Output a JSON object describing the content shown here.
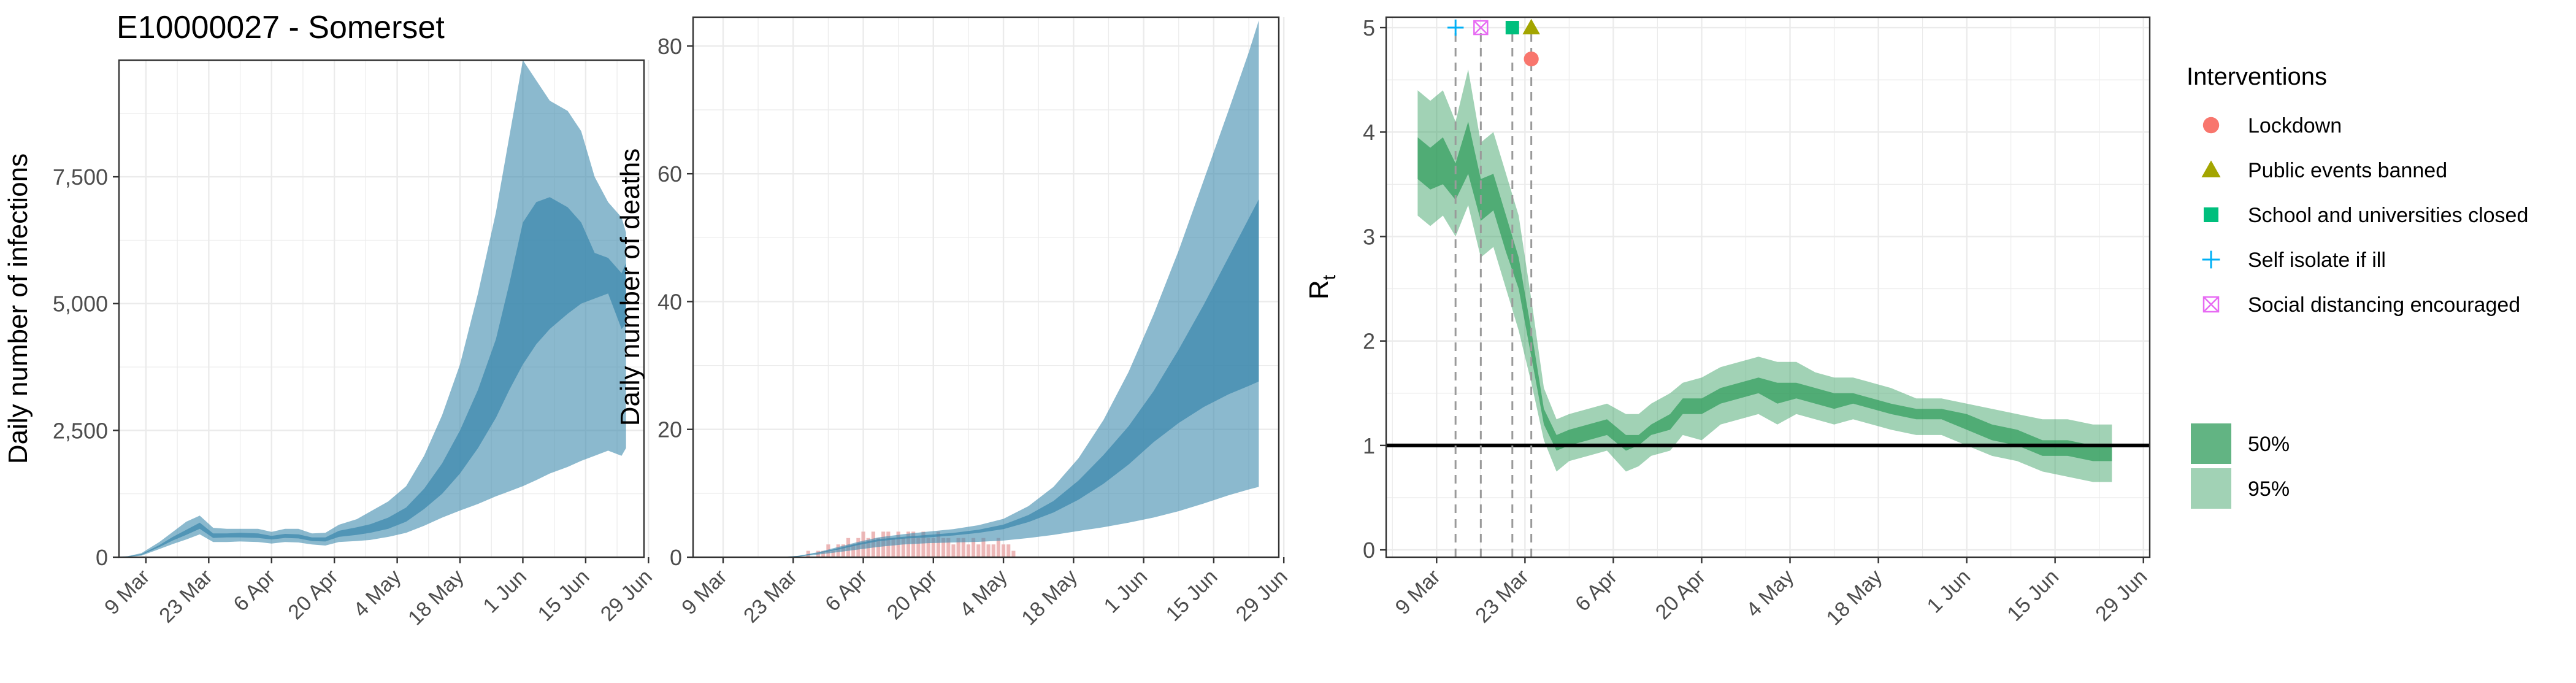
{
  "title": "E10000027 - Somerset",
  "colors": {
    "infection_fill": "#3d8aad",
    "rt_fill": "#2e9b5a",
    "death_bars": "#e9a6a6",
    "grid": "#ebebeb",
    "axis_text": "#4d4d4d",
    "lockdown": "#f8766d",
    "public_events": "#a3a500",
    "schools": "#00bf7d",
    "self_isolate": "#00b0f6",
    "social_distancing": "#e76bf3"
  },
  "x_ticks": [
    "9 Mar",
    "23 Mar",
    "6 Apr",
    "20 Apr",
    "4 May",
    "18 May",
    "1 Jun",
    "15 Jun",
    "29 Jun"
  ],
  "chart_data": [
    {
      "type": "area",
      "title": "E10000027 - Somerset",
      "xlabel": "",
      "ylabel": "Daily number of infections",
      "x_ticks": [
        "9 Mar",
        "23 Mar",
        "6 Apr",
        "20 Apr",
        "4 May",
        "18 May",
        "1 Jun",
        "15 Jun",
        "29 Jun"
      ],
      "y_ticks": [
        "0",
        "2,500",
        "5,000",
        "7,500"
      ],
      "ylim": [
        0,
        9800
      ],
      "grid": true,
      "x": [
        "2020-03-01",
        "2020-03-05",
        "2020-03-08",
        "2020-03-12",
        "2020-03-15",
        "2020-03-18",
        "2020-03-21",
        "2020-03-24",
        "2020-03-27",
        "2020-03-30",
        "2020-04-03",
        "2020-04-06",
        "2020-04-09",
        "2020-04-12",
        "2020-04-15",
        "2020-04-18",
        "2020-04-21",
        "2020-04-25",
        "2020-04-28",
        "2020-05-02",
        "2020-05-06",
        "2020-05-10",
        "2020-05-14",
        "2020-05-18",
        "2020-05-22",
        "2020-05-26",
        "2020-05-29",
        "2020-06-01",
        "2020-06-04",
        "2020-06-07",
        "2020-06-11",
        "2020-06-14",
        "2020-06-17",
        "2020-06-20",
        "2020-06-23",
        "2020-06-24"
      ],
      "series": [
        {
          "name": "95%",
          "low": [
            0,
            5,
            30,
            160,
            260,
            350,
            450,
            300,
            300,
            310,
            300,
            270,
            300,
            290,
            250,
            230,
            300,
            320,
            340,
            400,
            480,
            620,
            780,
            920,
            1050,
            1200,
            1300,
            1400,
            1520,
            1650,
            1780,
            1900,
            2000,
            2100,
            2000,
            2150
          ],
          "high": [
            0,
            20,
            80,
            300,
            500,
            700,
            820,
            580,
            560,
            560,
            560,
            500,
            560,
            560,
            470,
            480,
            640,
            750,
            900,
            1100,
            1400,
            2000,
            2800,
            3800,
            5200,
            6800,
            8300,
            9800,
            9400,
            9000,
            8800,
            8400,
            7500,
            7000,
            6700,
            6400
          ]
        },
        {
          "name": "50%",
          "low": [
            0,
            8,
            45,
            200,
            330,
            440,
            560,
            380,
            390,
            390,
            380,
            350,
            380,
            370,
            320,
            310,
            400,
            440,
            480,
            560,
            700,
            950,
            1250,
            1650,
            2150,
            2750,
            3300,
            3800,
            4200,
            4500,
            4800,
            5000,
            5100,
            5200,
            4500,
            4600
          ]
        },
        {
          "name": "50%-high",
          "high": [
            0,
            14,
            60,
            240,
            400,
            540,
            680,
            470,
            470,
            480,
            470,
            420,
            460,
            450,
            390,
            390,
            520,
            590,
            650,
            780,
            980,
            1350,
            1850,
            2500,
            3300,
            4300,
            5400,
            6600,
            7000,
            7100,
            6900,
            6600,
            6000,
            5900,
            5600,
            5800
          ]
        }
      ]
    },
    {
      "type": "area",
      "xlabel": "",
      "ylabel": "Daily number of deaths",
      "x_ticks": [
        "9 Mar",
        "23 Mar",
        "6 Apr",
        "20 Apr",
        "4 May",
        "18 May",
        "1 Jun",
        "15 Jun",
        "29 Jun"
      ],
      "y_ticks": [
        "0",
        "20",
        "40",
        "60",
        "80"
      ],
      "ylim": [
        0,
        84
      ],
      "grid": true,
      "x": [
        "2020-03-20",
        "2020-03-24",
        "2020-03-28",
        "2020-04-01",
        "2020-04-05",
        "2020-04-09",
        "2020-04-14",
        "2020-04-19",
        "2020-04-24",
        "2020-04-29",
        "2020-05-04",
        "2020-05-09",
        "2020-05-14",
        "2020-05-19",
        "2020-05-24",
        "2020-05-29",
        "2020-06-03",
        "2020-06-08",
        "2020-06-13",
        "2020-06-18",
        "2020-06-22",
        "2020-06-24"
      ],
      "series": [
        {
          "name": "95%",
          "low": [
            0,
            0.1,
            0.4,
            0.8,
            1.2,
            1.6,
            2.0,
            2.2,
            2.3,
            2.4,
            2.6,
            3.0,
            3.5,
            4.1,
            4.7,
            5.4,
            6.2,
            7.2,
            8.4,
            9.7,
            10.6,
            11.0
          ],
          "high": [
            0,
            0.2,
            0.8,
            1.6,
            2.4,
            3.1,
            3.6,
            4.0,
            4.4,
            5.0,
            6.0,
            8.0,
            11.0,
            15.5,
            21.5,
            29.0,
            38.0,
            48.0,
            59.0,
            70.0,
            79.0,
            84.0
          ]
        },
        {
          "name": "50%",
          "low": [
            0,
            0.1,
            0.6,
            1.2,
            1.9,
            2.5,
            2.9,
            3.1,
            3.4,
            3.8,
            4.4,
            5.5,
            7.0,
            9.0,
            11.5,
            14.5,
            18.0,
            21.0,
            23.5,
            25.5,
            26.8,
            27.5
          ]
        },
        {
          "name": "50%-high",
          "high": [
            0,
            0.2,
            0.7,
            1.4,
            2.2,
            2.8,
            3.2,
            3.5,
            3.8,
            4.3,
            5.1,
            6.6,
            8.8,
            12.0,
            16.0,
            20.5,
            26.0,
            32.5,
            39.5,
            47.0,
            53.0,
            56.0
          ]
        }
      ],
      "reported_deaths": {
        "dates_start": "2020-03-26",
        "values": [
          1,
          0,
          1,
          1,
          2,
          1,
          2,
          2,
          3,
          2,
          3,
          4,
          3,
          4,
          3,
          4,
          4,
          3,
          4,
          3,
          4,
          4,
          3,
          4,
          3,
          3,
          4,
          3,
          3,
          2,
          3,
          3,
          2,
          3,
          2,
          3,
          2,
          2,
          3,
          2,
          2,
          1
        ]
      }
    },
    {
      "type": "area",
      "xlabel": "",
      "ylabel": "R",
      "ylabel_subscript": "t",
      "x_ticks": [
        "9 Mar",
        "23 Mar",
        "6 Apr",
        "20 Apr",
        "4 May",
        "18 May",
        "1 Jun",
        "15 Jun",
        "29 Jun"
      ],
      "y_ticks": [
        "0",
        "1",
        "2",
        "3",
        "4",
        "5"
      ],
      "ylim": [
        0,
        5
      ],
      "reference_line": 1,
      "grid": true,
      "x": [
        "2020-03-06",
        "2020-03-08",
        "2020-03-10",
        "2020-03-12",
        "2020-03-14",
        "2020-03-16",
        "2020-03-18",
        "2020-03-20",
        "2020-03-22",
        "2020-03-24",
        "2020-03-26",
        "2020-03-28",
        "2020-03-30",
        "2020-04-02",
        "2020-04-05",
        "2020-04-08",
        "2020-04-10",
        "2020-04-12",
        "2020-04-15",
        "2020-04-17",
        "2020-04-20",
        "2020-04-23",
        "2020-04-26",
        "2020-04-29",
        "2020-05-02",
        "2020-05-05",
        "2020-05-08",
        "2020-05-11",
        "2020-05-14",
        "2020-05-17",
        "2020-05-20",
        "2020-05-24",
        "2020-05-28",
        "2020-06-01",
        "2020-06-05",
        "2020-06-09",
        "2020-06-13",
        "2020-06-17",
        "2020-06-21",
        "2020-06-24"
      ],
      "series": [
        {
          "name": "95%",
          "low": [
            3.2,
            3.1,
            3.2,
            3.0,
            3.3,
            2.8,
            2.9,
            2.5,
            2.1,
            1.6,
            1.05,
            0.75,
            0.85,
            0.9,
            0.95,
            0.75,
            0.8,
            0.9,
            0.95,
            1.1,
            1.05,
            1.2,
            1.25,
            1.3,
            1.2,
            1.3,
            1.25,
            1.2,
            1.25,
            1.2,
            1.15,
            1.1,
            1.1,
            1.0,
            0.9,
            0.85,
            0.75,
            0.7,
            0.65,
            0.65
          ],
          "high": [
            4.4,
            4.3,
            4.4,
            4.1,
            4.6,
            3.9,
            4.0,
            3.6,
            3.2,
            2.4,
            1.55,
            1.25,
            1.3,
            1.35,
            1.4,
            1.3,
            1.3,
            1.4,
            1.5,
            1.6,
            1.65,
            1.75,
            1.8,
            1.85,
            1.8,
            1.8,
            1.7,
            1.65,
            1.65,
            1.6,
            1.55,
            1.45,
            1.45,
            1.4,
            1.35,
            1.3,
            1.25,
            1.25,
            1.2,
            1.2
          ]
        },
        {
          "name": "50%",
          "low": [
            3.55,
            3.45,
            3.5,
            3.35,
            3.6,
            3.15,
            3.25,
            2.85,
            2.5,
            1.85,
            1.2,
            0.95,
            1.0,
            1.05,
            1.1,
            0.95,
            1.0,
            1.1,
            1.15,
            1.3,
            1.3,
            1.4,
            1.45,
            1.5,
            1.4,
            1.45,
            1.4,
            1.35,
            1.4,
            1.35,
            1.3,
            1.25,
            1.25,
            1.15,
            1.05,
            1.0,
            0.9,
            0.9,
            0.85,
            0.85
          ]
        },
        {
          "name": "50%-high",
          "high": [
            3.95,
            3.85,
            3.95,
            3.7,
            4.1,
            3.55,
            3.6,
            3.2,
            2.8,
            2.1,
            1.35,
            1.1,
            1.15,
            1.2,
            1.25,
            1.1,
            1.1,
            1.2,
            1.3,
            1.45,
            1.45,
            1.55,
            1.6,
            1.65,
            1.6,
            1.6,
            1.55,
            1.5,
            1.5,
            1.45,
            1.4,
            1.35,
            1.35,
            1.3,
            1.2,
            1.15,
            1.05,
            1.05,
            1.0,
            1.0
          ]
        }
      ],
      "interventions": [
        {
          "name": "Self isolate if ill",
          "date": "2020-03-12",
          "y": 5.0,
          "shape": "plus",
          "color_key": "self_isolate"
        },
        {
          "name": "Social distancing encouraged",
          "date": "2020-03-16",
          "y": 5.0,
          "shape": "boxcross",
          "color_key": "social_distancing"
        },
        {
          "name": "School and universities closed",
          "date": "2020-03-21",
          "y": 5.0,
          "shape": "square",
          "color_key": "schools"
        },
        {
          "name": "Public events banned",
          "date": "2020-03-24",
          "y": 5.0,
          "shape": "triangle",
          "color_key": "public_events"
        },
        {
          "name": "Lockdown",
          "date": "2020-03-24",
          "y": 4.7,
          "shape": "circle",
          "color_key": "lockdown"
        }
      ]
    }
  ],
  "legend": {
    "interventions_title": "Interventions",
    "interventions": [
      {
        "label": "Lockdown",
        "shape": "circle",
        "color_key": "lockdown"
      },
      {
        "label": "Public events banned",
        "shape": "triangle",
        "color_key": "public_events"
      },
      {
        "label": "School and universities closed",
        "shape": "square",
        "color_key": "schools"
      },
      {
        "label": "Self isolate if ill",
        "shape": "plus",
        "color_key": "self_isolate"
      },
      {
        "label": "Social distancing encouraged",
        "shape": "boxcross",
        "color_key": "social_distancing"
      }
    ],
    "intervals": [
      {
        "label": "50%",
        "opacity": 0.75
      },
      {
        "label": "95%",
        "opacity": 0.45
      }
    ]
  }
}
